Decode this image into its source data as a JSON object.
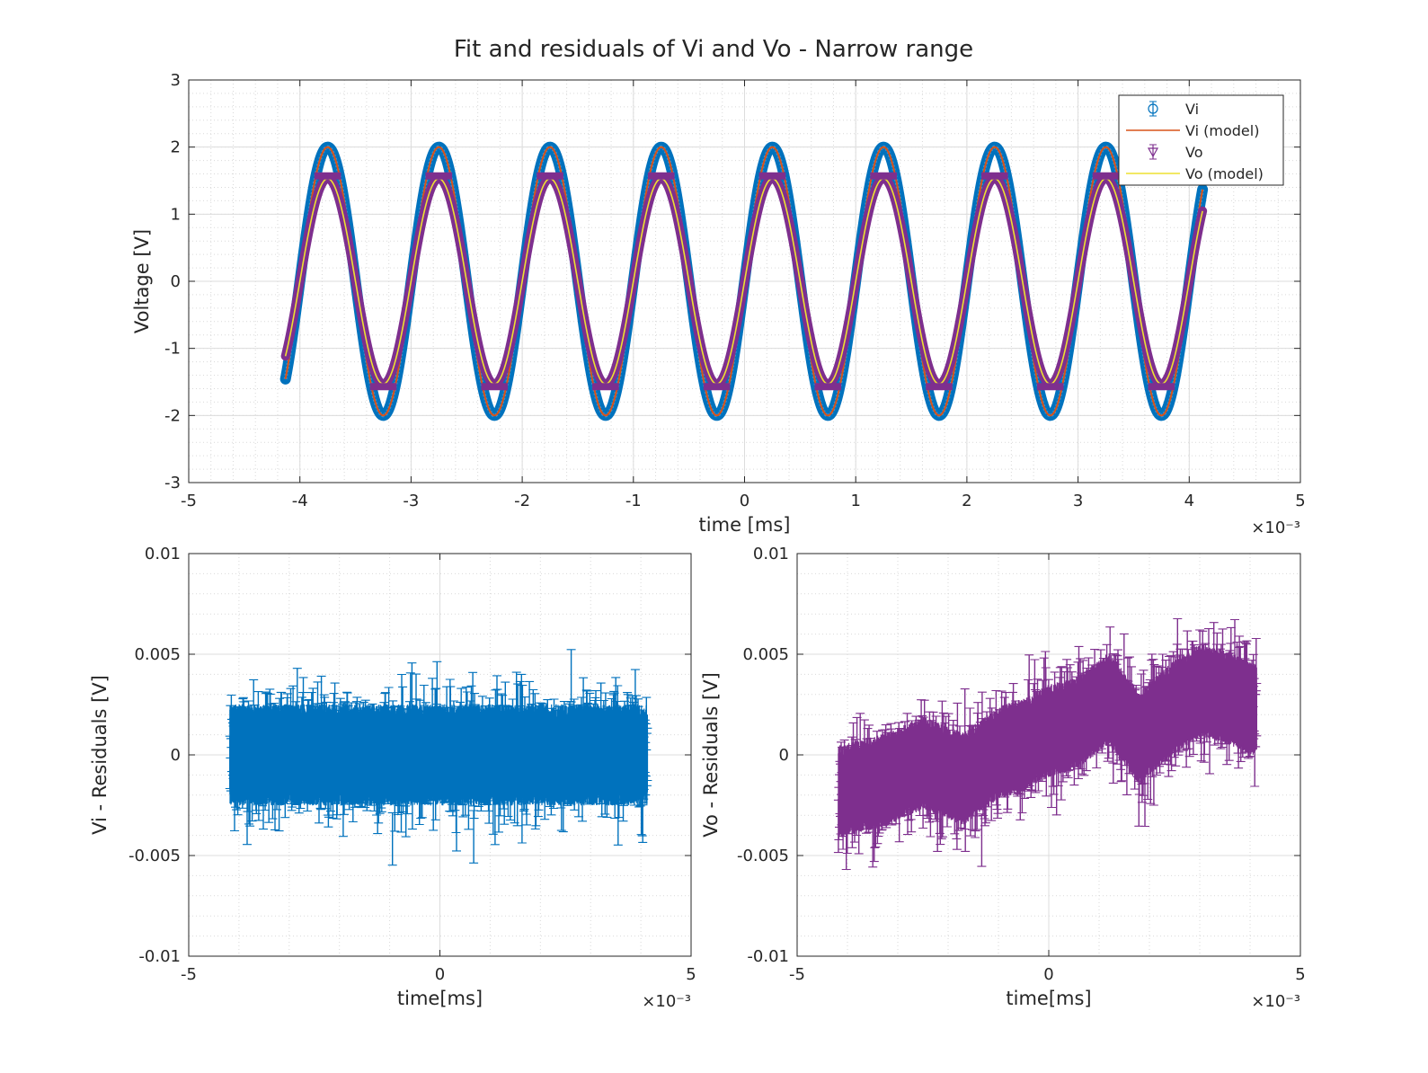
{
  "figure": {
    "title": "Fit and residuals of Vi and Vo - Narrow range"
  },
  "chart_data": [
    {
      "type": "line",
      "title": "Fit and residuals of Vi and Vo - Narrow range",
      "xlabel": "time [ms]",
      "ylabel": "Voltage [V]",
      "x_exponent": "×10⁻³",
      "xlim": [
        -0.005,
        0.005
      ],
      "ylim": [
        -3,
        3
      ],
      "xticks": [
        -0.005,
        -0.004,
        -0.003,
        -0.002,
        -0.001,
        0,
        0.001,
        0.002,
        0.003,
        0.004,
        0.005
      ],
      "xtick_labels": [
        "-5",
        "-4",
        "-3",
        "-2",
        "-1",
        "0",
        "1",
        "2",
        "3",
        "4",
        "5"
      ],
      "yticks": [
        -3,
        -2,
        -1,
        0,
        1,
        2,
        3
      ],
      "ytick_labels": [
        "-3",
        "-2",
        "-1",
        "0",
        "1",
        "2",
        "3"
      ],
      "grid": true,
      "minor_grid": true,
      "legend": "top-right",
      "x_range_data": [
        -0.00413,
        0.00412
      ],
      "frequency_hz": 1000,
      "phase_peak_time": 0.00025,
      "series": [
        {
          "name": "Vi",
          "kind": "errorbar",
          "marker": "circle",
          "amplitude": 2.0,
          "color": "#0072BD"
        },
        {
          "name": "Vi (model)",
          "kind": "line",
          "amplitude": 2.0,
          "color": "#D95319"
        },
        {
          "name": "Vo",
          "kind": "errorbar",
          "marker": "triangle-down",
          "amplitude": 1.53,
          "color": "#7E2F8E"
        },
        {
          "name": "Vo (model)",
          "kind": "line",
          "amplitude": 1.53,
          "color": "#EDE131"
        }
      ]
    },
    {
      "type": "scatter",
      "xlabel": "time[ms]",
      "ylabel": "Vi - Residuals [V]",
      "x_exponent": "×10⁻³",
      "xlim": [
        -0.005,
        0.005
      ],
      "ylim": [
        -0.01,
        0.01
      ],
      "xticks": [
        -0.005,
        0,
        0.005
      ],
      "xtick_labels": [
        "-5",
        "0",
        "5"
      ],
      "yticks": [
        -0.01,
        -0.005,
        0,
        0.005,
        0.01
      ],
      "ytick_labels": [
        "-0.01",
        "-0.005",
        "0",
        "0.005",
        "0.01"
      ],
      "grid": true,
      "minor_grid": true,
      "x_range_data": [
        -0.00418,
        0.00413
      ],
      "series": [
        {
          "name": "Vi",
          "kind": "errorbar-residuals",
          "color": "#0072BD",
          "trend": [
            [
              -0.0041,
              0.0
            ],
            [
              0.0041,
              0.0
            ]
          ],
          "noise_sd": 0.0012,
          "error_halfwidth": 0.0013
        }
      ]
    },
    {
      "type": "scatter",
      "xlabel": "time[ms]",
      "ylabel": "Vo - Residuals [V]",
      "x_exponent": "×10⁻³",
      "xlim": [
        -0.005,
        0.005
      ],
      "ylim": [
        -0.01,
        0.01
      ],
      "xticks": [
        -0.005,
        0,
        0.005
      ],
      "xtick_labels": [
        "-5",
        "0",
        "5"
      ],
      "yticks": [
        -0.01,
        -0.005,
        0,
        0.005,
        0.01
      ],
      "ytick_labels": [
        "-0.01",
        "-0.005",
        "0",
        "0.005",
        "0.01"
      ],
      "grid": true,
      "minor_grid": true,
      "x_range_data": [
        -0.00418,
        0.00413
      ],
      "series": [
        {
          "name": "Vo",
          "kind": "errorbar-residuals",
          "color": "#7E2F8E",
          "trend": [
            [
              -0.0041,
              -0.0018
            ],
            [
              -0.0032,
              -0.0012
            ],
            [
              -0.0025,
              -0.0004
            ],
            [
              -0.0017,
              -0.0012
            ],
            [
              -0.001,
              0.0001
            ],
            [
              -0.0005,
              0.0005
            ],
            [
              0.0,
              0.0012
            ],
            [
              0.0005,
              0.0015
            ],
            [
              0.0012,
              0.0028
            ],
            [
              0.0018,
              0.0008
            ],
            [
              0.0024,
              0.0022
            ],
            [
              0.003,
              0.0032
            ],
            [
              0.0036,
              0.0028
            ],
            [
              0.0041,
              0.0022
            ]
          ],
          "noise_sd": 0.0011,
          "error_halfwidth": 0.0013
        }
      ]
    }
  ]
}
